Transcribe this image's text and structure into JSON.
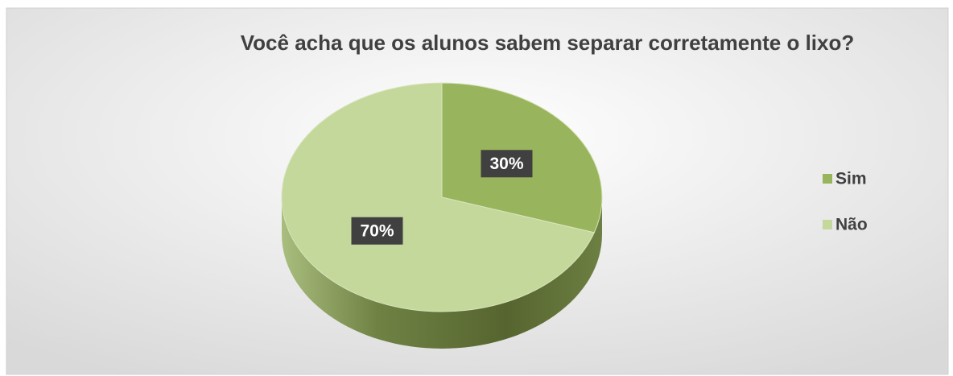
{
  "chart_data": {
    "type": "pie",
    "title": "Você acha que os alunos sabem separar corretamente o lixo?",
    "categories": [
      "Sim",
      "Não"
    ],
    "values": [
      30,
      70
    ],
    "value_labels": [
      "30%",
      "70%"
    ],
    "colors": [
      "#98b45c",
      "#c4d89c"
    ],
    "legend": "right"
  }
}
